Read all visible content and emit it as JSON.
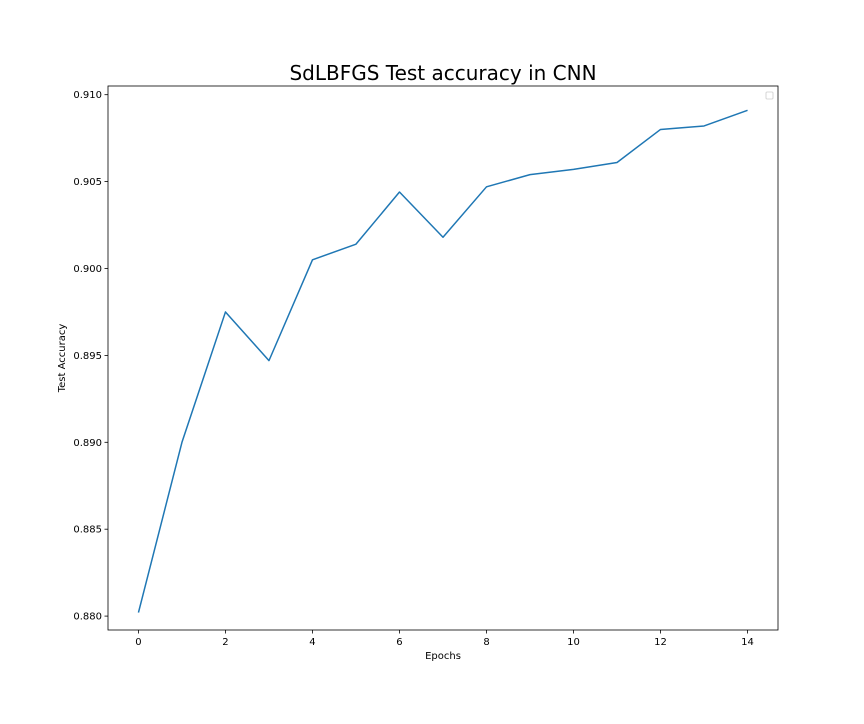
{
  "chart_data": {
    "type": "line",
    "title": "SdLBFGS Test accuracy in CNN",
    "xlabel": "Epochs",
    "ylabel": "Test Accuracy",
    "xlim": [
      -0.7,
      14.7
    ],
    "ylim": [
      0.8792,
      0.9105
    ],
    "x_ticks": [
      0,
      2,
      4,
      6,
      8,
      10,
      12,
      14
    ],
    "x_tick_labels": [
      "0",
      "2",
      "4",
      "6",
      "8",
      "10",
      "12",
      "14"
    ],
    "y_ticks": [
      0.88,
      0.885,
      0.89,
      0.895,
      0.9,
      0.905,
      0.91
    ],
    "y_tick_labels": [
      "0.880",
      "0.885",
      "0.890",
      "0.895",
      "0.900",
      "0.905",
      "0.910"
    ],
    "grid": false,
    "legend": {
      "placement": "top-right",
      "entries": []
    },
    "series": [
      {
        "color": "#1f77b4",
        "x": [
          0,
          1,
          2,
          3,
          4,
          5,
          6,
          7,
          8,
          9,
          10,
          11,
          12,
          13,
          14
        ],
        "y": [
          0.8802,
          0.89,
          0.8975,
          0.8947,
          0.9005,
          0.9014,
          0.9044,
          0.9018,
          0.9047,
          0.9054,
          0.9057,
          0.9061,
          0.908,
          0.9082,
          0.9091
        ]
      }
    ]
  }
}
